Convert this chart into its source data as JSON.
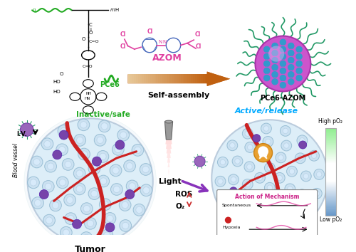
{
  "bg_color": "#ffffff",
  "arrow_color_self_assembly_start": "#e8c898",
  "arrow_color_self_assembly_end": "#c06010",
  "text_inactive": "Inactive/safe",
  "text_inactive_color": "#22aa22",
  "text_active": "Active/release",
  "text_active_color": "#00aaff",
  "text_azom": "AZOM",
  "text_azom_color": "#e040a0",
  "text_pce6_azom": "PCe6-AZOM",
  "text_self_assembly": "Self-assembly",
  "text_light": "Light",
  "text_ros": "ROS",
  "text_o2": "O₂",
  "text_tumor": "Tumor",
  "text_iv": "I.V.",
  "text_blood_vessel": "Blood vessel",
  "text_spontaneous": "Spontaneous",
  "text_hypoxia": "Hypoxia",
  "text_action": "Action of Mechanism",
  "text_action_color": "#cc2288",
  "text_high_po2": "High pO₂",
  "text_low_po2": "Low pO₂",
  "text_pce6": "PCe6",
  "text_pce6_color": "#22aa22",
  "nano_outer_color": "#cc55cc",
  "nano_inner_color": "#4499cc",
  "nano_hex_color": "#cc55cc",
  "nano_tendril_color": "#229966",
  "tumor_fill": "#ddeef8",
  "tumor_edge": "#bbccdd",
  "blood_red": "#cc2222",
  "cell_fill": "#c8dff0",
  "cell_edge": "#90b8d0",
  "np_purple": "#7744aa",
  "np_purple_edge": "#5522aa",
  "gradient_green": "#90ee90",
  "gradient_white": "#ffffff",
  "gradient_blue": "#6699cc"
}
